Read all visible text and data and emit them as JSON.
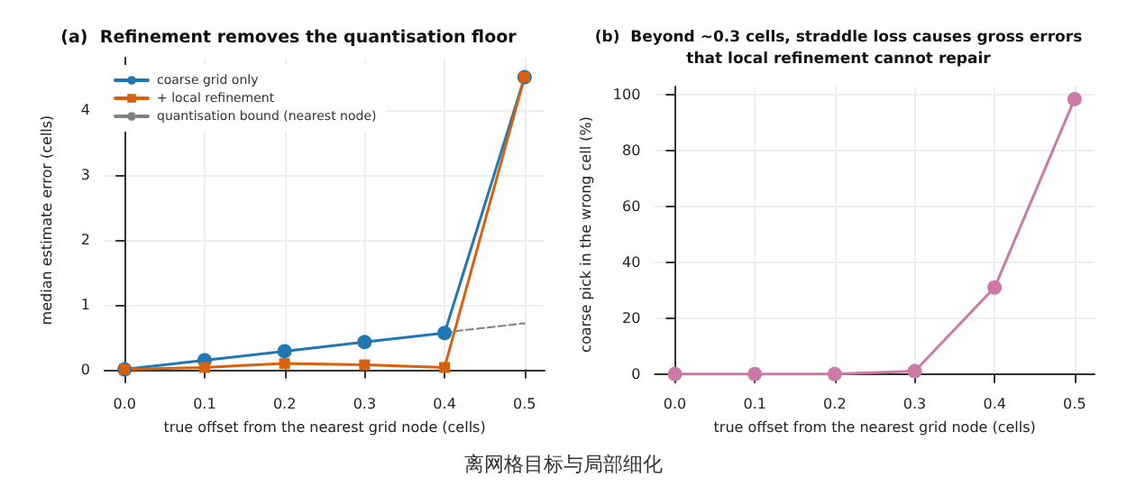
{
  "chart_data": [
    {
      "type": "line",
      "title": "(a)  Refinement removes the quantisation floor",
      "xlabel": "true offset from the nearest grid node (cells)",
      "ylabel": "median estimate error (cells)",
      "x": [
        0.0,
        0.1,
        0.2,
        0.3,
        0.4,
        0.5
      ],
      "series": [
        {
          "name": "coarse grid only",
          "color": "#1f77b4",
          "marker": "circle",
          "line_style": "solid",
          "values": [
            0.0,
            0.14,
            0.28,
            0.42,
            0.56,
            4.5
          ]
        },
        {
          "name": "+ local refinement",
          "color": "#d9600c",
          "marker": "square",
          "line_style": "solid",
          "values": [
            0.0,
            0.03,
            0.09,
            0.07,
            0.03,
            4.5
          ]
        },
        {
          "name": "quantisation bound (nearest node)",
          "color": "#808080",
          "marker": "none",
          "line_style": "dashed",
          "x": [
            0.4,
            0.5
          ],
          "values": [
            0.57,
            0.71
          ]
        }
      ],
      "xlim": [
        -0.025,
        0.525
      ],
      "xticks": [
        {
          "value": 0,
          "label": "0.0"
        },
        0.1,
        0.2,
        0.3,
        0.4,
        0.5
      ],
      "ylim": [
        -0.2,
        4.8
      ],
      "yticks": [
        0,
        1,
        2,
        3,
        4
      ],
      "grid": true,
      "legend": "top left",
      "annotations": [
        "离网格目标与局部细化"
      ]
    },
    {
      "type": "line",
      "title": "(b)  Beyond ~0.3 cells, straddle loss causes gross errors\nthat local refinement cannot repair",
      "xlabel": "true offset from the nearest grid node (cells)",
      "ylabel": "coarse pick in the wrong cell (%)",
      "x": [
        0.0,
        0.1,
        0.2,
        0.3,
        0.4,
        0.5
      ],
      "series": [
        {
          "color": "#cc79a7",
          "marker": "circle",
          "line_style": "solid",
          "values": [
            0,
            0,
            0,
            1,
            31,
            98.5
          ]
        }
      ],
      "xlim": [
        -0.025,
        0.525
      ],
      "xticks": [
        {
          "value": 0,
          "label": "0.0"
        },
        0.1,
        0.2,
        0.3,
        0.4,
        0.5
      ],
      "ylim": [
        -3,
        103
      ],
      "yticks": [
        0,
        20,
        40,
        60,
        80,
        100
      ],
      "grid": true,
      "legend": false
    }
  ]
}
